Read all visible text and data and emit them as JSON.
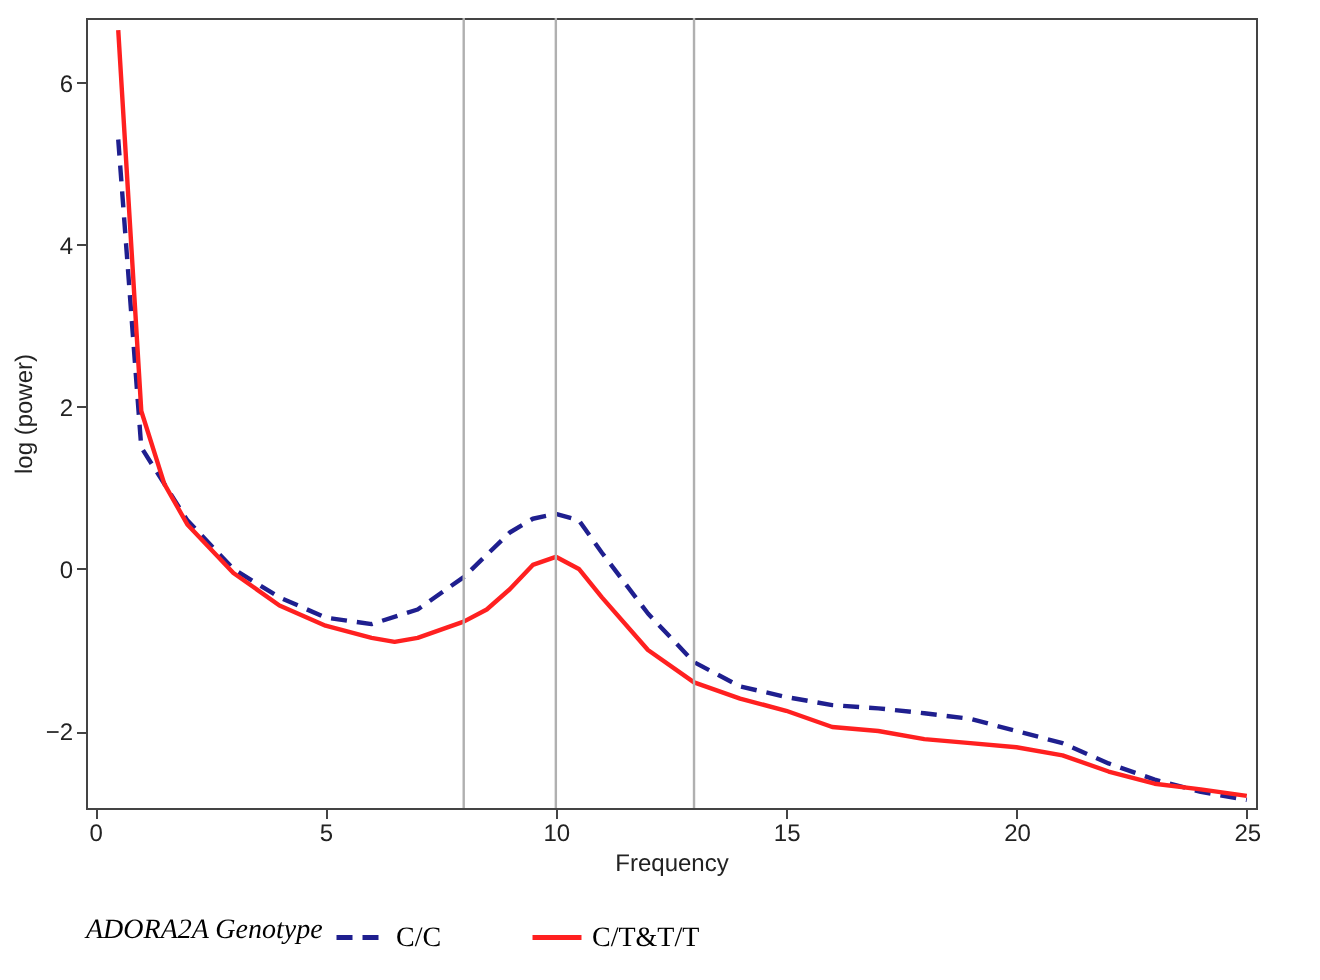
{
  "chart_data": {
    "type": "line",
    "xlabel": "Frequency",
    "ylabel": "log (power)",
    "legend_title": "ADORA2A Genotype",
    "legend": "bottom",
    "grid": false,
    "marker": "none",
    "xlim": [
      -0.2,
      25.2
    ],
    "xticks": [
      0,
      5,
      10,
      15,
      20,
      25
    ],
    "ylim": [
      -2.95,
      6.8
    ],
    "yticks": [
      -2,
      0,
      2,
      4,
      6
    ],
    "ref_lines": [
      {
        "axis": "x",
        "value": 8,
        "color": "#b0b0b0"
      },
      {
        "axis": "x",
        "value": 10,
        "color": "#b0b0b0"
      },
      {
        "axis": "x",
        "value": 13,
        "color": "#b0b0b0"
      }
    ],
    "series": [
      {
        "name": "C/C",
        "color": "#1f1f8f",
        "line_style": "dashed",
        "x": [
          0.5,
          1,
          2,
          3,
          4,
          5,
          6,
          7,
          8,
          9,
          9.5,
          10,
          10.5,
          11,
          12,
          13,
          14,
          15,
          16,
          17,
          18,
          19,
          20,
          21,
          22,
          23,
          24,
          25
        ],
        "values": [
          5.3,
          1.5,
          0.6,
          0.0,
          -0.35,
          -0.6,
          -0.68,
          -0.5,
          -0.1,
          0.45,
          0.62,
          0.68,
          0.6,
          0.2,
          -0.55,
          -1.15,
          -1.45,
          -1.58,
          -1.68,
          -1.72,
          -1.78,
          -1.85,
          -2.0,
          -2.15,
          -2.4,
          -2.6,
          -2.75,
          -2.85
        ]
      },
      {
        "name": "C/T&T/T",
        "color": "#ff2020",
        "line_style": "solid",
        "x": [
          0.5,
          1,
          1.5,
          2,
          3,
          4,
          5,
          6,
          6.5,
          7,
          8,
          8.5,
          9,
          9.5,
          10,
          10.5,
          11,
          12,
          13,
          14,
          15,
          16,
          17,
          18,
          19,
          20,
          21,
          22,
          23,
          24,
          25
        ],
        "values": [
          6.65,
          1.95,
          1.05,
          0.55,
          -0.05,
          -0.45,
          -0.7,
          -0.85,
          -0.9,
          -0.85,
          -0.65,
          -0.5,
          -0.25,
          0.05,
          0.15,
          0.0,
          -0.35,
          -1.0,
          -1.4,
          -1.6,
          -1.75,
          -1.95,
          -2.0,
          -2.1,
          -2.15,
          -2.2,
          -2.3,
          -2.5,
          -2.65,
          -2.72,
          -2.8
        ]
      }
    ]
  }
}
